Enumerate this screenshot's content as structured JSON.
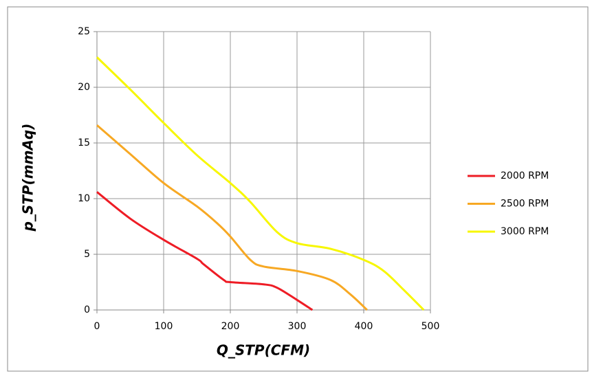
{
  "chart_data": {
    "type": "line",
    "x_label": "Q_STP(CFM)",
    "y_label": "p_STP(mmAq)",
    "xlim": [
      0,
      500
    ],
    "xticks": [
      0,
      100,
      200,
      300,
      400,
      500
    ],
    "ylim": [
      0,
      25
    ],
    "yticks": [
      0,
      5,
      10,
      15,
      20,
      25
    ],
    "grid": true,
    "legend": "right",
    "series": [
      {
        "name": "2000 RPM",
        "color": "#ee1c25",
        "x": [
          0,
          50,
          100,
          150,
          160,
          190,
          200,
          250,
          270,
          300,
          323
        ],
        "values": [
          10.6,
          8.2,
          6.3,
          4.6,
          4.1,
          2.7,
          2.5,
          2.3,
          2.0,
          0.9,
          0
        ]
      },
      {
        "name": "2500 RPM",
        "color": "#f7a823",
        "x": [
          0,
          50,
          100,
          150,
          180,
          200,
          230,
          250,
          300,
          350,
          380,
          405
        ],
        "values": [
          16.6,
          14.0,
          11.4,
          9.3,
          7.8,
          6.6,
          4.5,
          3.9,
          3.5,
          2.7,
          1.4,
          0
        ]
      },
      {
        "name": "3000 RPM",
        "color": "#f7f700",
        "x": [
          0,
          50,
          100,
          150,
          200,
          230,
          270,
          300,
          350,
          400,
          430,
          460,
          490
        ],
        "values": [
          22.7,
          19.8,
          16.8,
          13.9,
          11.4,
          9.7,
          7.0,
          6.0,
          5.5,
          4.5,
          3.5,
          1.8,
          0
        ]
      }
    ]
  }
}
